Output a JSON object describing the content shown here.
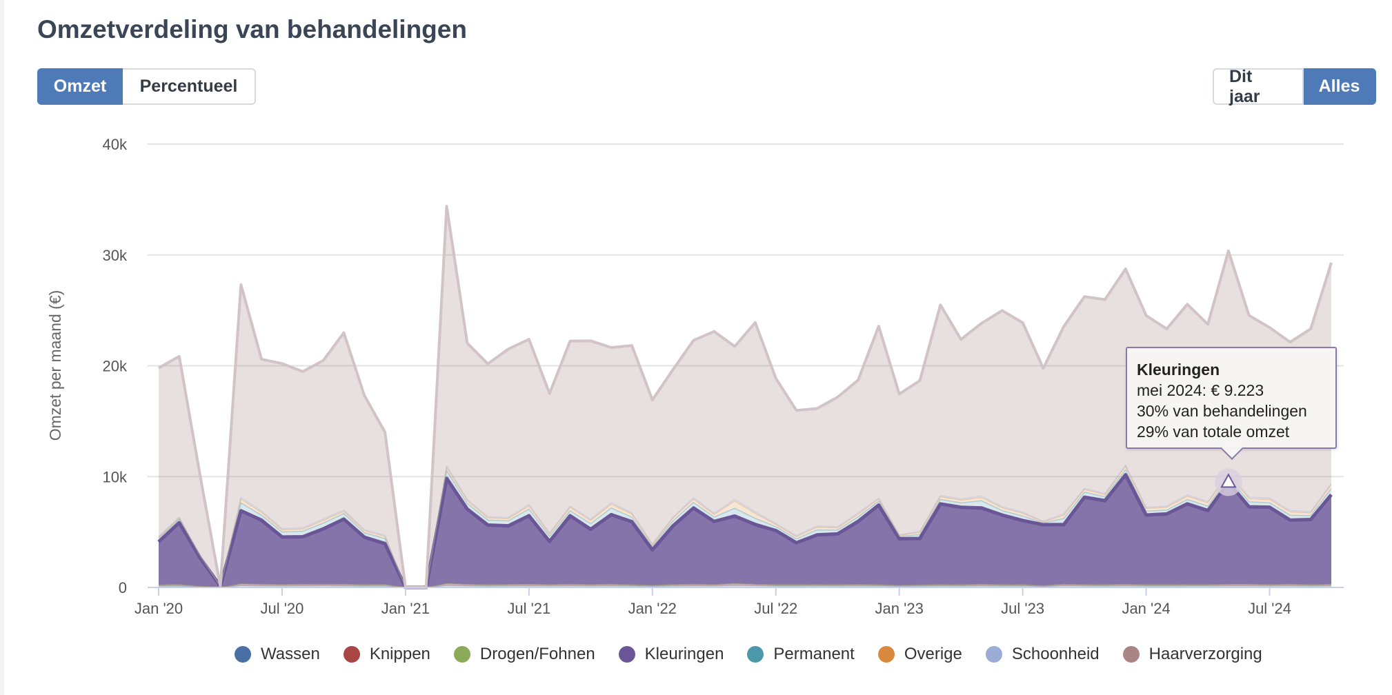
{
  "title": "Omzetverdeling van behandelingen",
  "toggle_metric": {
    "omzet": "Omzet",
    "percentueel": "Percentueel",
    "active": "omzet"
  },
  "toggle_range": {
    "dit_jaar": "Dit jaar",
    "alles": "Alles",
    "active": "alles"
  },
  "tooltip": {
    "title": "Kleuringen",
    "line1": "mei 2024: € 9.223",
    "line2": "30% van behandelingen",
    "line3": "29% van totale omzet"
  },
  "chart_data": {
    "type": "area",
    "stacked": true,
    "title": "Omzetverdeling van behandelingen",
    "xlabel": "",
    "ylabel": "Omzet per maand (€)",
    "ylim": [
      0,
      40000
    ],
    "yticks": [
      0,
      10000,
      20000,
      30000,
      40000
    ],
    "ytick_labels": [
      "0",
      "10k",
      "20k",
      "30k",
      "40k"
    ],
    "xtick_labels": [
      {
        "index": 0,
        "label": "Jan '20"
      },
      {
        "index": 6,
        "label": "Jul '20"
      },
      {
        "index": 12,
        "label": "Jan '21"
      },
      {
        "index": 18,
        "label": "Jul '21"
      },
      {
        "index": 24,
        "label": "Jan '22"
      },
      {
        "index": 30,
        "label": "Jul '22"
      },
      {
        "index": 36,
        "label": "Jan '23"
      },
      {
        "index": 42,
        "label": "Jul '23"
      },
      {
        "index": 48,
        "label": "Jan '24"
      },
      {
        "index": 54,
        "label": "Jul '24"
      }
    ],
    "months": 58,
    "highlight": {
      "series": "Kleuringen",
      "index": 52
    },
    "legend_position": "bottom",
    "series": [
      {
        "name": "Wassen",
        "color": "#4a6fa5",
        "values": [
          120,
          130,
          60,
          0,
          180,
          150,
          140,
          150,
          160,
          150,
          130,
          140,
          0,
          0,
          190,
          150,
          130,
          140,
          150,
          140,
          150,
          140,
          150,
          130,
          110,
          140,
          150,
          140,
          190,
          160,
          130,
          130,
          140,
          130,
          140,
          130,
          110,
          120,
          140,
          130,
          150,
          130,
          140,
          90,
          160,
          140,
          130,
          150,
          130,
          130,
          140,
          140,
          150,
          150,
          140,
          150,
          130,
          150
        ]
      },
      {
        "name": "Knippen",
        "color": "#a94545",
        "values": [
          60,
          70,
          30,
          0,
          80,
          70,
          70,
          70,
          70,
          70,
          60,
          70,
          0,
          0,
          90,
          70,
          60,
          70,
          70,
          70,
          70,
          70,
          70,
          60,
          50,
          70,
          70,
          70,
          90,
          70,
          60,
          60,
          60,
          60,
          70,
          60,
          50,
          60,
          60,
          60,
          70,
          60,
          60,
          40,
          70,
          60,
          60,
          70,
          60,
          60,
          60,
          60,
          70,
          70,
          60,
          70,
          60,
          70
        ]
      },
      {
        "name": "Drogen/Fohnen",
        "color": "#8cab5a",
        "values": [
          40,
          50,
          20,
          0,
          60,
          50,
          40,
          50,
          50,
          50,
          40,
          50,
          0,
          0,
          60,
          50,
          40,
          50,
          50,
          40,
          50,
          40,
          50,
          40,
          30,
          40,
          50,
          40,
          60,
          50,
          40,
          40,
          40,
          40,
          50,
          40,
          30,
          40,
          40,
          40,
          50,
          40,
          40,
          30,
          50,
          40,
          40,
          50,
          40,
          40,
          40,
          40,
          50,
          50,
          40,
          50,
          40,
          50
        ]
      },
      {
        "name": "Kleuringen",
        "color": "#6a5696",
        "values": [
          3900,
          5600,
          2600,
          100,
          6600,
          5800,
          4300,
          4300,
          5000,
          5900,
          4300,
          3700,
          0,
          0,
          9500,
          6800,
          5400,
          5300,
          6200,
          3900,
          6200,
          5000,
          6300,
          5700,
          3200,
          5300,
          6900,
          5700,
          6100,
          5400,
          4900,
          3800,
          4500,
          4600,
          5700,
          7200,
          4200,
          4200,
          7300,
          7000,
          6900,
          6300,
          5800,
          5500,
          5400,
          7900,
          7600,
          9900,
          6300,
          6400,
          7300,
          6700,
          9223,
          7000,
          7000,
          5800,
          5900,
          8100
        ]
      },
      {
        "name": "Permanent",
        "color": "#4c98ab",
        "values": [
          300,
          320,
          150,
          0,
          700,
          450,
          450,
          500,
          520,
          500,
          400,
          450,
          0,
          0,
          700,
          500,
          450,
          450,
          600,
          450,
          450,
          500,
          600,
          400,
          300,
          450,
          500,
          400,
          700,
          550,
          350,
          350,
          450,
          350,
          400,
          350,
          200,
          350,
          400,
          400,
          650,
          400,
          400,
          150,
          550,
          450,
          350,
          450,
          350,
          350,
          400,
          400,
          450,
          450,
          400,
          450,
          350,
          550
        ]
      },
      {
        "name": "Overige",
        "color": "#d9893e",
        "values": [
          100,
          100,
          50,
          0,
          350,
          250,
          200,
          200,
          250,
          200,
          200,
          200,
          0,
          0,
          300,
          250,
          200,
          200,
          300,
          200,
          300,
          300,
          350,
          300,
          150,
          250,
          300,
          250,
          650,
          450,
          200,
          200,
          250,
          200,
          250,
          200,
          100,
          200,
          250,
          250,
          300,
          250,
          250,
          100,
          300,
          250,
          200,
          300,
          250,
          250,
          300,
          300,
          300,
          300,
          300,
          300,
          250,
          350
        ]
      },
      {
        "name": "Schoonheid",
        "color": "#9bacd6",
        "values": [
          80,
          80,
          40,
          0,
          150,
          120,
          100,
          110,
          120,
          110,
          90,
          100,
          0,
          0,
          150,
          120,
          100,
          100,
          120,
          100,
          110,
          100,
          120,
          100,
          80,
          100,
          120,
          100,
          150,
          120,
          90,
          90,
          100,
          90,
          100,
          90,
          60,
          90,
          100,
          100,
          120,
          100,
          100,
          60,
          120,
          100,
          90,
          120,
          100,
          100,
          110,
          100,
          120,
          120,
          110,
          120,
          100,
          130
        ]
      },
      {
        "name": "Haarverzorging",
        "color": "#a88483",
        "values": [
          15200,
          14500,
          7300,
          0,
          19200,
          13700,
          14900,
          14100,
          14300,
          16000,
          12100,
          9300,
          0,
          0,
          23400,
          14100,
          13800,
          15200,
          14900,
          12600,
          14900,
          16100,
          14000,
          15100,
          13000,
          13300,
          14200,
          16400,
          13800,
          17100,
          13100,
          11300,
          10600,
          11700,
          12000,
          15500,
          12700,
          13600,
          17200,
          14400,
          15600,
          17700,
          17100,
          13800,
          16900,
          17300,
          17500,
          17700,
          17300,
          16000,
          17200,
          16000,
          20000,
          16400,
          15400,
          15200,
          16500,
          19900
        ]
      }
    ]
  },
  "legend": [
    {
      "label": "Wassen",
      "color": "#4a6fa5"
    },
    {
      "label": "Knippen",
      "color": "#a94545"
    },
    {
      "label": "Drogen/Fohnen",
      "color": "#8cab5a"
    },
    {
      "label": "Kleuringen",
      "color": "#6a5696"
    },
    {
      "label": "Permanent",
      "color": "#4c98ab"
    },
    {
      "label": "Overige",
      "color": "#d9893e"
    },
    {
      "label": "Schoonheid",
      "color": "#9bacd6"
    },
    {
      "label": "Haarverzorging",
      "color": "#a88483"
    }
  ]
}
